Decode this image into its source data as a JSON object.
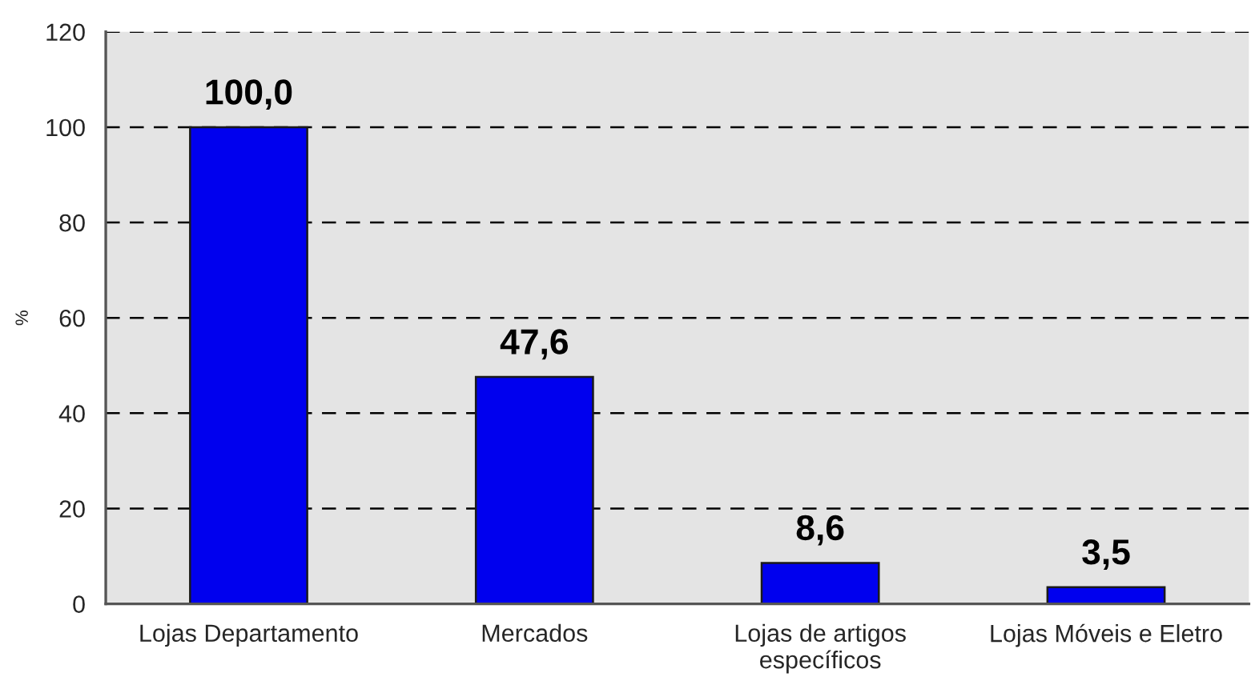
{
  "chart_data": {
    "type": "bar",
    "ylabel": "%",
    "categories": [
      "Lojas Departamento",
      "Mercados",
      "Lojas de artigos\nespecíficos",
      "Lojas Móveis e Eletro"
    ],
    "values": [
      100.0,
      47.6,
      8.6,
      3.5
    ],
    "color": "#0000ee",
    "value_labels": [
      "100,0",
      "47,6",
      "8,6",
      "3,5"
    ],
    "ylim": [
      0,
      120
    ],
    "yticks": [
      0,
      20,
      40,
      60,
      80,
      100,
      120
    ],
    "grid": "y"
  }
}
